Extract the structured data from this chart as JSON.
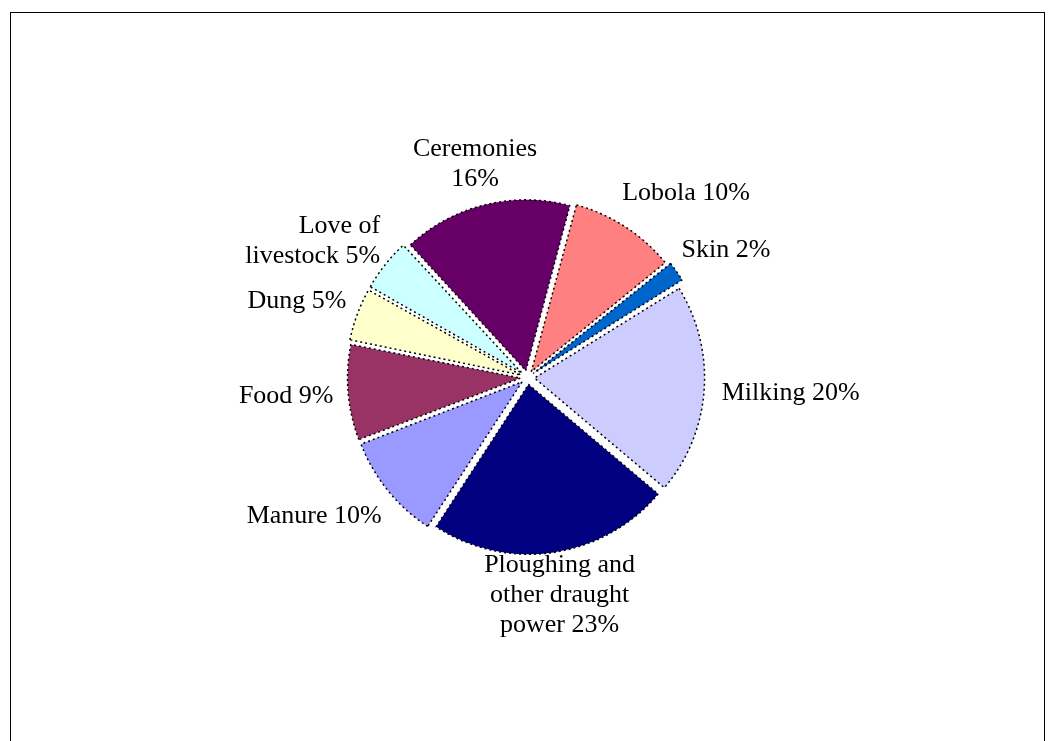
{
  "chart_data": {
    "type": "pie",
    "categories": [
      "Lobola",
      "Skin",
      "Milking",
      "Ploughing and other draught power",
      "Manure",
      "Food",
      "Dung",
      "Love of livestock",
      "Ceremonies"
    ],
    "values": [
      10,
      2,
      20,
      23,
      10,
      9,
      5,
      5,
      16
    ],
    "colors": [
      "#ff8080",
      "#0066cc",
      "#ccccff",
      "#000080",
      "#9999ff",
      "#993366",
      "#ffffcc",
      "#ccffff",
      "#660066"
    ],
    "value_labels": [
      "10%",
      "2%",
      "20%",
      "23%",
      "10%",
      "9%",
      "5%",
      "5%",
      "16%"
    ],
    "legend": false
  }
}
